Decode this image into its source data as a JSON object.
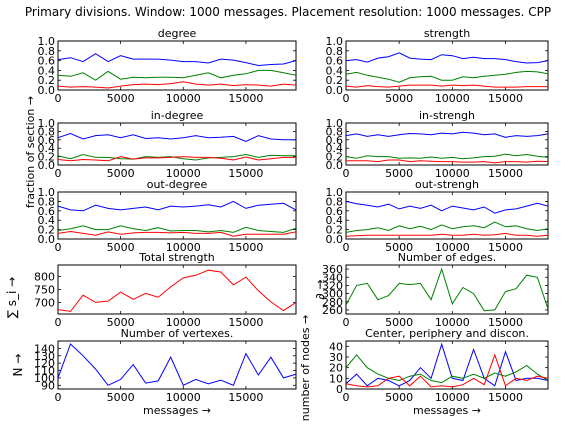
{
  "figure": {
    "suptitle": "Primary divisions. Window: 1000 messages. Placement resolution: 1000 messages. CPP",
    "ylabel_left_group": "fraction of section →",
    "ylabel_right_group": "number of nodes →"
  },
  "chart_data": [
    {
      "id": "degree",
      "type": "line",
      "title": "degree",
      "xlim": [
        0,
        19000
      ],
      "ylim": [
        0,
        1.0
      ],
      "yticks": [
        "0.0",
        "0.2",
        "0.4",
        "0.6",
        "0.8",
        "1.0"
      ],
      "xticks": [
        "0",
        "5000",
        "10000",
        "15000"
      ],
      "xlabel": "",
      "ylabel": "",
      "x": [
        0,
        1000,
        2000,
        3000,
        4000,
        5000,
        6000,
        7000,
        8000,
        9000,
        10000,
        11000,
        12000,
        13000,
        14000,
        15000,
        16000,
        17000,
        18000,
        19000
      ],
      "series": [
        {
          "color": "#0000ff",
          "values": [
            0.62,
            0.66,
            0.58,
            0.74,
            0.58,
            0.7,
            0.63,
            0.63,
            0.63,
            0.61,
            0.58,
            0.58,
            0.55,
            0.63,
            0.61,
            0.56,
            0.5,
            0.52,
            0.53,
            0.6
          ]
        },
        {
          "color": "#008000",
          "values": [
            0.3,
            0.28,
            0.35,
            0.2,
            0.38,
            0.22,
            0.26,
            0.25,
            0.26,
            0.26,
            0.25,
            0.3,
            0.35,
            0.25,
            0.3,
            0.33,
            0.4,
            0.4,
            0.35,
            0.3
          ]
        },
        {
          "color": "#ff0000",
          "values": [
            0.08,
            0.06,
            0.07,
            0.06,
            0.04,
            0.08,
            0.11,
            0.12,
            0.11,
            0.13,
            0.17,
            0.12,
            0.1,
            0.12,
            0.09,
            0.11,
            0.1,
            0.08,
            0.12,
            0.1
          ]
        }
      ]
    },
    {
      "id": "strength",
      "type": "line",
      "title": "strength",
      "xlim": [
        0,
        19000
      ],
      "ylim": [
        0,
        1.0
      ],
      "yticks": [
        "0.0",
        "0.2",
        "0.4",
        "0.6",
        "0.8",
        "1.0"
      ],
      "xticks": [
        "0",
        "5000",
        "10000",
        "15000"
      ],
      "xlabel": "",
      "ylabel": "",
      "x": [
        0,
        1000,
        2000,
        3000,
        4000,
        5000,
        6000,
        7000,
        8000,
        9000,
        10000,
        11000,
        12000,
        13000,
        14000,
        15000,
        16000,
        17000,
        18000,
        19000
      ],
      "series": [
        {
          "color": "#0000ff",
          "values": [
            0.6,
            0.62,
            0.57,
            0.65,
            0.68,
            0.76,
            0.65,
            0.63,
            0.62,
            0.72,
            0.7,
            0.64,
            0.67,
            0.64,
            0.64,
            0.62,
            0.58,
            0.55,
            0.56,
            0.6
          ]
        },
        {
          "color": "#008000",
          "values": [
            0.32,
            0.36,
            0.3,
            0.26,
            0.22,
            0.16,
            0.25,
            0.27,
            0.28,
            0.2,
            0.2,
            0.27,
            0.25,
            0.28,
            0.3,
            0.32,
            0.36,
            0.38,
            0.37,
            0.33
          ]
        },
        {
          "color": "#ff0000",
          "values": [
            0.08,
            0.06,
            0.09,
            0.07,
            0.06,
            0.08,
            0.1,
            0.1,
            0.1,
            0.08,
            0.1,
            0.09,
            0.1,
            0.08,
            0.06,
            0.06,
            0.06,
            0.07,
            0.07,
            0.07
          ]
        }
      ]
    },
    {
      "id": "in-degree",
      "type": "line",
      "title": "in-degree",
      "xlim": [
        0,
        19000
      ],
      "ylim": [
        0,
        1.0
      ],
      "yticks": [
        "0.0",
        "0.2",
        "0.4",
        "0.6",
        "0.8",
        "1.0"
      ],
      "xticks": [
        "0",
        "5000",
        "10000",
        "15000"
      ],
      "xlabel": "",
      "ylabel": "",
      "x": [
        0,
        1000,
        2000,
        3000,
        4000,
        5000,
        6000,
        7000,
        8000,
        9000,
        10000,
        11000,
        12000,
        13000,
        14000,
        15000,
        16000,
        17000,
        18000,
        19000
      ],
      "series": [
        {
          "color": "#0000ff",
          "values": [
            0.65,
            0.75,
            0.62,
            0.7,
            0.72,
            0.65,
            0.72,
            0.63,
            0.65,
            0.62,
            0.65,
            0.7,
            0.65,
            0.66,
            0.68,
            0.56,
            0.7,
            0.62,
            0.6,
            0.6
          ]
        },
        {
          "color": "#008000",
          "values": [
            0.22,
            0.15,
            0.25,
            0.18,
            0.18,
            0.15,
            0.14,
            0.2,
            0.18,
            0.2,
            0.15,
            0.12,
            0.17,
            0.18,
            0.2,
            0.25,
            0.18,
            0.23,
            0.22,
            0.22
          ]
        },
        {
          "color": "#ff0000",
          "values": [
            0.13,
            0.1,
            0.13,
            0.12,
            0.1,
            0.2,
            0.14,
            0.17,
            0.17,
            0.18,
            0.2,
            0.18,
            0.18,
            0.16,
            0.12,
            0.19,
            0.12,
            0.15,
            0.18,
            0.18
          ]
        }
      ]
    },
    {
      "id": "in-strengh",
      "type": "line",
      "title": "in-strengh",
      "xlim": [
        0,
        19000
      ],
      "ylim": [
        0,
        1.0
      ],
      "yticks": [
        "0.0",
        "0.2",
        "0.4",
        "0.6",
        "0.8",
        "1.0"
      ],
      "xticks": [
        "0",
        "5000",
        "10000",
        "15000"
      ],
      "xlabel": "",
      "ylabel": "",
      "x": [
        0,
        1000,
        2000,
        3000,
        4000,
        5000,
        6000,
        7000,
        8000,
        9000,
        10000,
        11000,
        12000,
        13000,
        14000,
        15000,
        16000,
        17000,
        18000,
        19000
      ],
      "series": [
        {
          "color": "#0000ff",
          "values": [
            0.7,
            0.74,
            0.68,
            0.72,
            0.68,
            0.72,
            0.75,
            0.74,
            0.72,
            0.76,
            0.74,
            0.78,
            0.76,
            0.72,
            0.74,
            0.66,
            0.7,
            0.68,
            0.7,
            0.74
          ]
        },
        {
          "color": "#008000",
          "values": [
            0.2,
            0.16,
            0.22,
            0.2,
            0.2,
            0.16,
            0.17,
            0.16,
            0.19,
            0.16,
            0.18,
            0.15,
            0.17,
            0.2,
            0.21,
            0.26,
            0.22,
            0.25,
            0.21,
            0.18
          ]
        },
        {
          "color": "#ff0000",
          "values": [
            0.1,
            0.1,
            0.1,
            0.08,
            0.12,
            0.12,
            0.08,
            0.1,
            0.09,
            0.08,
            0.08,
            0.07,
            0.07,
            0.08,
            0.05,
            0.08,
            0.08,
            0.07,
            0.09,
            0.08
          ]
        }
      ]
    },
    {
      "id": "out-degree",
      "type": "line",
      "title": "out-degree",
      "xlim": [
        0,
        19000
      ],
      "ylim": [
        0,
        1.0
      ],
      "yticks": [
        "0.0",
        "0.2",
        "0.4",
        "0.6",
        "0.8",
        "1.0"
      ],
      "xticks": [
        "0",
        "5000",
        "10000",
        "15000"
      ],
      "xlabel": "",
      "ylabel": "",
      "x": [
        0,
        1000,
        2000,
        3000,
        4000,
        5000,
        6000,
        7000,
        8000,
        9000,
        10000,
        11000,
        12000,
        13000,
        14000,
        15000,
        16000,
        17000,
        18000,
        19000
      ],
      "series": [
        {
          "color": "#0000ff",
          "values": [
            0.7,
            0.62,
            0.6,
            0.72,
            0.65,
            0.62,
            0.65,
            0.68,
            0.62,
            0.7,
            0.68,
            0.7,
            0.73,
            0.68,
            0.8,
            0.65,
            0.72,
            0.74,
            0.76,
            0.62
          ]
        },
        {
          "color": "#008000",
          "values": [
            0.18,
            0.22,
            0.28,
            0.2,
            0.2,
            0.28,
            0.22,
            0.18,
            0.24,
            0.17,
            0.18,
            0.18,
            0.15,
            0.18,
            0.14,
            0.25,
            0.18,
            0.16,
            0.14,
            0.23
          ]
        },
        {
          "color": "#ff0000",
          "values": [
            0.12,
            0.16,
            0.12,
            0.08,
            0.15,
            0.1,
            0.13,
            0.14,
            0.14,
            0.13,
            0.14,
            0.12,
            0.12,
            0.14,
            0.06,
            0.1,
            0.1,
            0.1,
            0.1,
            0.15
          ]
        }
      ]
    },
    {
      "id": "out-strengh",
      "type": "line",
      "title": "out-strengh",
      "xlim": [
        0,
        19000
      ],
      "ylim": [
        0,
        1.0
      ],
      "yticks": [
        "0.0",
        "0.2",
        "0.4",
        "0.6",
        "0.8",
        "1.0"
      ],
      "xticks": [
        "0",
        "5000",
        "10000",
        "15000"
      ],
      "xlabel": "",
      "ylabel": "",
      "x": [
        0,
        1000,
        2000,
        3000,
        4000,
        5000,
        6000,
        7000,
        8000,
        9000,
        10000,
        11000,
        12000,
        13000,
        14000,
        15000,
        16000,
        17000,
        18000,
        19000
      ],
      "series": [
        {
          "color": "#0000ff",
          "values": [
            0.8,
            0.75,
            0.72,
            0.68,
            0.74,
            0.64,
            0.7,
            0.65,
            0.72,
            0.6,
            0.7,
            0.66,
            0.62,
            0.68,
            0.55,
            0.62,
            0.64,
            0.7,
            0.76,
            0.7
          ]
        },
        {
          "color": "#008000",
          "values": [
            0.14,
            0.18,
            0.2,
            0.24,
            0.18,
            0.28,
            0.22,
            0.27,
            0.2,
            0.3,
            0.22,
            0.26,
            0.28,
            0.24,
            0.36,
            0.26,
            0.28,
            0.22,
            0.18,
            0.22
          ]
        },
        {
          "color": "#ff0000",
          "values": [
            0.06,
            0.07,
            0.08,
            0.08,
            0.08,
            0.08,
            0.08,
            0.08,
            0.08,
            0.1,
            0.08,
            0.08,
            0.1,
            0.08,
            0.09,
            0.12,
            0.08,
            0.08,
            0.06,
            0.08
          ]
        }
      ]
    },
    {
      "id": "total-strength",
      "type": "line",
      "title": "Total strength",
      "xlim": [
        0,
        19000
      ],
      "ylim": [
        655,
        845
      ],
      "yticks": [
        "700",
        "750",
        "800"
      ],
      "ytick_values": [
        700,
        750,
        800
      ],
      "xticks": [
        "0",
        "5000",
        "10000",
        "15000"
      ],
      "xlabel": "",
      "ylabel": "∑ s_i →",
      "x": [
        0,
        1000,
        2000,
        3000,
        4000,
        5000,
        6000,
        7000,
        8000,
        9000,
        10000,
        11000,
        12000,
        13000,
        14000,
        15000,
        16000,
        17000,
        18000,
        19000
      ],
      "series": [
        {
          "color": "#ff0000",
          "values": [
            672,
            665,
            728,
            700,
            705,
            740,
            712,
            735,
            720,
            760,
            795,
            805,
            825,
            818,
            768,
            798,
            745,
            702,
            668,
            700
          ]
        }
      ]
    },
    {
      "id": "number-of-edges",
      "type": "line",
      "title": "Number of edges.",
      "xlim": [
        0,
        19000
      ],
      "ylim": [
        250,
        370
      ],
      "yticks": [
        "260",
        "280",
        "300",
        "320",
        "340",
        "360"
      ],
      "ytick_values": [
        260,
        280,
        300,
        320,
        340,
        360
      ],
      "xticks": [
        "0",
        "5000",
        "10000",
        "15000"
      ],
      "xlabel": "",
      "ylabel": "∂ →",
      "x": [
        0,
        1000,
        2000,
        3000,
        4000,
        5000,
        6000,
        7000,
        8000,
        9000,
        10000,
        11000,
        12000,
        13000,
        14000,
        15000,
        16000,
        17000,
        18000,
        19000
      ],
      "series": [
        {
          "color": "#008000",
          "values": [
            272,
            320,
            325,
            285,
            295,
            325,
            322,
            325,
            285,
            360,
            275,
            315,
            300,
            258,
            260,
            305,
            312,
            345,
            340,
            262
          ]
        }
      ]
    },
    {
      "id": "number-of-vertexes",
      "type": "line",
      "title": "Number of vertexes.",
      "xlim": [
        0,
        19000
      ],
      "ylim": [
        85,
        150
      ],
      "yticks": [
        "90",
        "100",
        "110",
        "120",
        "130",
        "140"
      ],
      "ytick_values": [
        90,
        100,
        110,
        120,
        130,
        140
      ],
      "xticks": [
        "0",
        "5000",
        "10000",
        "15000"
      ],
      "xlabel": "messages →",
      "ylabel": "N →",
      "x": [
        0,
        1000,
        2000,
        3000,
        4000,
        5000,
        6000,
        7000,
        8000,
        9000,
        10000,
        11000,
        12000,
        13000,
        14000,
        15000,
        16000,
        17000,
        18000,
        19000
      ],
      "series": [
        {
          "color": "#0000ff",
          "values": [
            100,
            146,
            130,
            112,
            90,
            98,
            118,
            93,
            96,
            128,
            90,
            98,
            92,
            97,
            90,
            133,
            104,
            128,
            100,
            105
          ]
        }
      ]
    },
    {
      "id": "center-periphery",
      "type": "line",
      "title": "Center, periphery and discon.",
      "xlim": [
        0,
        19000
      ],
      "ylim": [
        0,
        45
      ],
      "yticks": [
        "0",
        "10",
        "20",
        "30",
        "40"
      ],
      "ytick_values": [
        0,
        10,
        20,
        30,
        40
      ],
      "xticks": [
        "0",
        "5000",
        "10000",
        "15000"
      ],
      "xlabel": "messages →",
      "ylabel": "",
      "x": [
        0,
        1000,
        2000,
        3000,
        4000,
        5000,
        6000,
        7000,
        8000,
        9000,
        10000,
        11000,
        12000,
        13000,
        14000,
        15000,
        16000,
        17000,
        18000,
        19000
      ],
      "series": [
        {
          "color": "#0000ff",
          "values": [
            5,
            14,
            3,
            10,
            8,
            3,
            8,
            20,
            10,
            42,
            10,
            8,
            37,
            10,
            3,
            35,
            8,
            10,
            10,
            8
          ]
        },
        {
          "color": "#008000",
          "values": [
            20,
            32,
            20,
            14,
            10,
            8,
            12,
            14,
            8,
            6,
            12,
            10,
            14,
            10,
            15,
            12,
            16,
            22,
            14,
            8
          ]
        },
        {
          "color": "#ff0000",
          "values": [
            5,
            3,
            2,
            3,
            10,
            12,
            3,
            12,
            2,
            3,
            2,
            4,
            10,
            4,
            32,
            3,
            10,
            8,
            12,
            10
          ]
        }
      ]
    }
  ]
}
